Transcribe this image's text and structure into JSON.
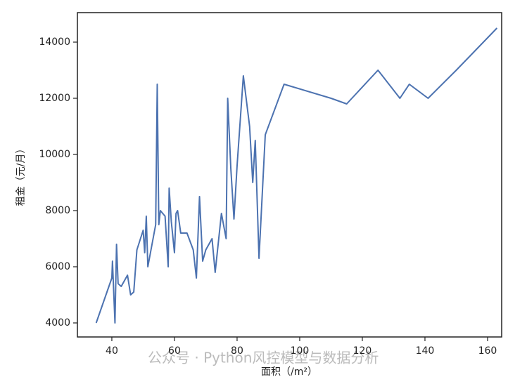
{
  "chart_data": {
    "type": "line",
    "xlabel": "面积（/m²）",
    "ylabel": "租金（元/月）",
    "watermark": "公众号 · Python风控模型与数据分析",
    "x": [
      35,
      40,
      40.2,
      41,
      41.5,
      42,
      43,
      45,
      46,
      47,
      48,
      50,
      50.5,
      51,
      51.5,
      54,
      54.5,
      55,
      55.5,
      57,
      58,
      58.3,
      59,
      60,
      60.5,
      61,
      62,
      64,
      66,
      67,
      68,
      69,
      70,
      72,
      73,
      75,
      76.5,
      77,
      78,
      79,
      80,
      82,
      84,
      85,
      85.8,
      87,
      89,
      95,
      110,
      115,
      125,
      132,
      135,
      141,
      150,
      163
    ],
    "series": [
      {
        "name": "租金",
        "color": "#4c72b0",
        "values": [
          4000,
          5600,
          6200,
          4000,
          6800,
          5400,
          5300,
          5700,
          5000,
          5100,
          6600,
          7300,
          6500,
          7800,
          6000,
          7500,
          12500,
          7500,
          8000,
          7800,
          6000,
          8800,
          7600,
          6500,
          7900,
          8000,
          7200,
          7200,
          6600,
          5600,
          8500,
          6200,
          6600,
          7000,
          5800,
          7900,
          7000,
          12000,
          9500,
          7700,
          9600,
          12800,
          11000,
          9000,
          10500,
          6300,
          10700,
          12500,
          12000,
          11800,
          13000,
          12000,
          12500,
          12000,
          13000,
          14500
        ]
      }
    ],
    "xlim": [
      29,
      164.5
    ],
    "ylim": [
      3500,
      15050
    ],
    "xticks": [
      40,
      60,
      80,
      100,
      120,
      140,
      160
    ],
    "yticks": [
      4000,
      6000,
      8000,
      10000,
      12000,
      14000
    ]
  }
}
